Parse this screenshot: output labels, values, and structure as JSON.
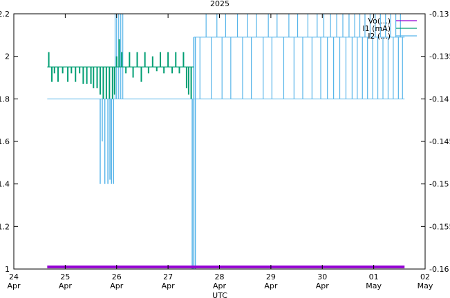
{
  "chart_data": {
    "type": "line",
    "title": "2025",
    "xlabel": "UTC",
    "x_ticks": [
      {
        "day": "24",
        "month": "Apr",
        "t": 0
      },
      {
        "day": "25",
        "month": "Apr",
        "t": 1
      },
      {
        "day": "26",
        "month": "Apr",
        "t": 2
      },
      {
        "day": "27",
        "month": "Apr",
        "t": 3
      },
      {
        "day": "28",
        "month": "Apr",
        "t": 4
      },
      {
        "day": "29",
        "month": "Apr",
        "t": 5
      },
      {
        "day": "30",
        "month": "Apr",
        "t": 6
      },
      {
        "day": "01",
        "month": "May",
        "t": 7
      },
      {
        "day": "02",
        "month": "May",
        "t": 8
      }
    ],
    "xlim": [
      0,
      8
    ],
    "y_left": {
      "lim": [
        1.0,
        2.2
      ],
      "ticks": [
        "1",
        "1.2",
        "1.4",
        "1.6",
        "1.8",
        "2",
        "2.2"
      ],
      "values": [
        1.0,
        1.2,
        1.4,
        1.6,
        1.8,
        2.0,
        2.2
      ]
    },
    "y_right": {
      "lim": [
        -0.16,
        -0.13
      ],
      "ticks": [
        "-0.16",
        "-0.155",
        "-0.15",
        "-0.145",
        "-0.14",
        "-0.135",
        "-0.13"
      ],
      "values": [
        -0.16,
        -0.155,
        -0.15,
        -0.145,
        -0.14,
        -0.135,
        -0.13
      ]
    },
    "legend": {
      "position": "top-right",
      "entries": [
        {
          "label": "Vo(...)",
          "color": "#9400d3"
        },
        {
          "label": "I1 (mA)",
          "color": "#009e73"
        },
        {
          "label": "I2 (...)",
          "color": "#56b4e9"
        }
      ]
    },
    "series": [
      {
        "name": "Vo(...)",
        "color": "#9400d3",
        "axis": "left",
        "points": [
          [
            0.65,
            1.01
          ],
          [
            7.6,
            1.01
          ]
        ]
      },
      {
        "name": "I1 (mA)",
        "color": "#009e73",
        "axis": "left",
        "baseline": 1.95,
        "range": [
          0.65,
          3.5
        ],
        "spikes": [
          [
            0.68,
            2.02
          ],
          [
            0.74,
            1.88
          ],
          [
            0.79,
            1.92
          ],
          [
            0.86,
            1.88
          ],
          [
            0.95,
            1.92
          ],
          [
            1.05,
            1.88
          ],
          [
            1.12,
            1.92
          ],
          [
            1.2,
            1.88
          ],
          [
            1.28,
            1.92
          ],
          [
            1.35,
            1.87
          ],
          [
            1.42,
            1.87
          ],
          [
            1.5,
            1.87
          ],
          [
            1.55,
            1.85
          ],
          [
            1.62,
            1.85
          ],
          [
            1.68,
            1.82
          ],
          [
            1.74,
            1.8
          ],
          [
            1.8,
            1.8
          ],
          [
            1.86,
            1.8
          ],
          [
            1.92,
            1.8
          ],
          [
            1.96,
            1.82
          ],
          [
            2.0,
            2.0
          ],
          [
            2.05,
            2.08
          ],
          [
            2.1,
            2.02
          ],
          [
            2.18,
            1.92
          ],
          [
            2.25,
            2.02
          ],
          [
            2.32,
            1.9
          ],
          [
            2.4,
            2.02
          ],
          [
            2.48,
            1.88
          ],
          [
            2.55,
            2.02
          ],
          [
            2.62,
            1.92
          ],
          [
            2.7,
            2.0
          ],
          [
            2.78,
            1.93
          ],
          [
            2.85,
            2.02
          ],
          [
            2.92,
            1.92
          ],
          [
            3.0,
            2.02
          ],
          [
            3.08,
            1.92
          ],
          [
            3.15,
            2.02
          ],
          [
            3.22,
            1.92
          ],
          [
            3.3,
            2.02
          ],
          [
            3.36,
            1.85
          ],
          [
            3.4,
            1.82
          ],
          [
            3.45,
            1.8
          ]
        ]
      },
      {
        "name": "I2 (...)",
        "color": "#56b4e9",
        "axis": "left",
        "baseline_early": 1.8,
        "baseline_late": 2.09,
        "switch_t": 3.5,
        "range": [
          0.65,
          7.6
        ],
        "down_spikes": [
          [
            1.68,
            1.4
          ],
          [
            1.72,
            1.6
          ],
          [
            1.77,
            1.4
          ],
          [
            1.83,
            1.4
          ],
          [
            1.87,
            1.42
          ],
          [
            1.9,
            1.4
          ],
          [
            1.94,
            1.4
          ],
          [
            3.47,
            1.0
          ],
          [
            3.5,
            1.0
          ],
          [
            3.53,
            1.0
          ]
        ],
        "up_spikes": [
          [
            1.97,
            2.2
          ],
          [
            2.0,
            2.2
          ],
          [
            2.04,
            2.2
          ],
          [
            2.08,
            2.2
          ],
          [
            2.12,
            2.2
          ],
          [
            3.62,
            1.8
          ],
          [
            3.74,
            2.2
          ],
          [
            3.84,
            1.8
          ],
          [
            3.95,
            2.2
          ],
          [
            4.05,
            1.8
          ],
          [
            4.12,
            2.2
          ],
          [
            4.22,
            1.8
          ],
          [
            4.35,
            2.2
          ],
          [
            4.45,
            1.8
          ],
          [
            4.55,
            2.2
          ],
          [
            4.62,
            1.8
          ],
          [
            4.72,
            2.2
          ],
          [
            4.85,
            1.8
          ],
          [
            4.95,
            2.2
          ],
          [
            5.02,
            1.8
          ],
          [
            5.12,
            2.2
          ],
          [
            5.25,
            1.8
          ],
          [
            5.35,
            2.2
          ],
          [
            5.45,
            1.8
          ],
          [
            5.52,
            2.2
          ],
          [
            5.62,
            1.8
          ],
          [
            5.72,
            2.2
          ],
          [
            5.8,
            1.8
          ],
          [
            5.9,
            2.2
          ],
          [
            5.97,
            1.8
          ],
          [
            6.03,
            2.2
          ],
          [
            6.1,
            1.8
          ],
          [
            6.16,
            2.2
          ],
          [
            6.22,
            1.8
          ],
          [
            6.28,
            2.2
          ],
          [
            6.34,
            1.8
          ],
          [
            6.4,
            2.2
          ],
          [
            6.46,
            1.8
          ],
          [
            6.52,
            2.2
          ],
          [
            6.58,
            1.8
          ],
          [
            6.63,
            2.2
          ],
          [
            6.68,
            1.8
          ],
          [
            6.73,
            2.2
          ],
          [
            6.78,
            1.8
          ],
          [
            6.83,
            2.2
          ],
          [
            6.88,
            1.8
          ],
          [
            6.93,
            2.2
          ],
          [
            6.98,
            1.8
          ],
          [
            7.03,
            2.2
          ],
          [
            7.08,
            1.8
          ],
          [
            7.13,
            2.2
          ],
          [
            7.18,
            1.8
          ],
          [
            7.23,
            2.2
          ],
          [
            7.28,
            1.8
          ],
          [
            7.33,
            2.2
          ],
          [
            7.38,
            1.8
          ],
          [
            7.43,
            2.2
          ],
          [
            7.48,
            1.8
          ],
          [
            7.52,
            2.2
          ],
          [
            7.56,
            1.8
          ]
        ]
      }
    ]
  }
}
